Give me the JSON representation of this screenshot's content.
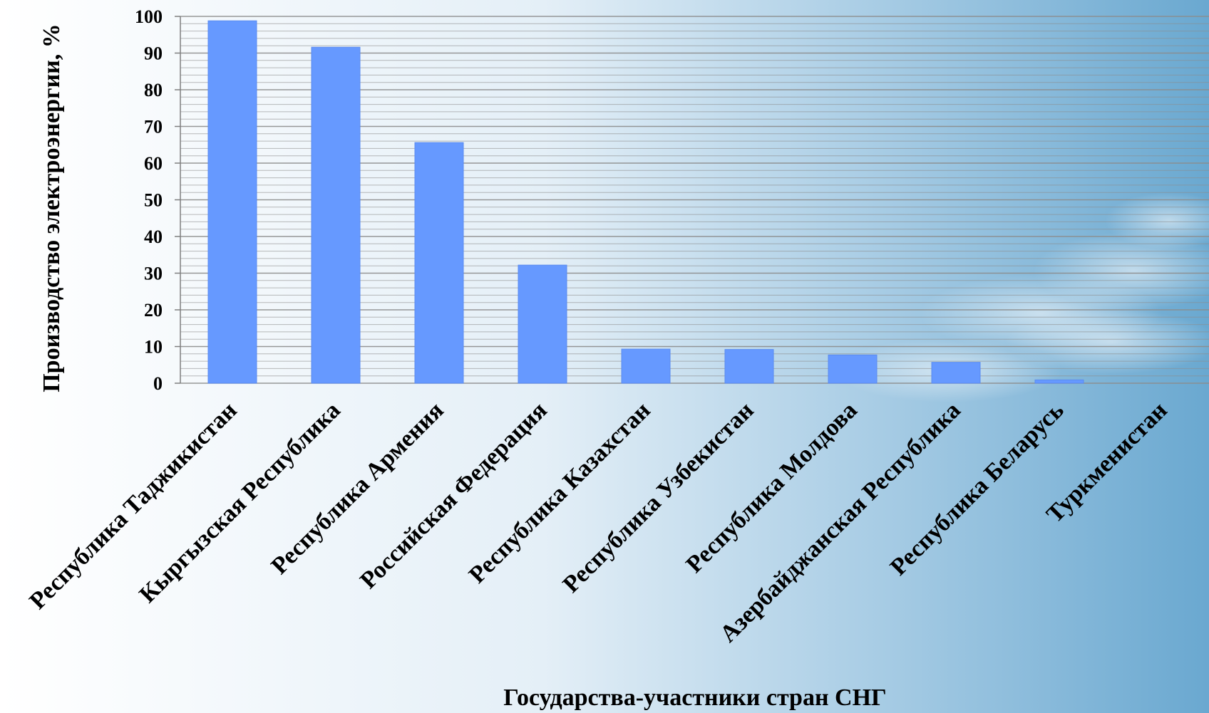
{
  "colors": {
    "bar": "#6699FF",
    "background_left": "#FFFFFF",
    "background_right": "#6AA8D0",
    "gridline": "#8C8C8C"
  },
  "chart_data": {
    "type": "bar",
    "title": "",
    "xlabel": "Государства-участники стран СНГ",
    "ylabel": "Производство электроэнергии, %",
    "ylim": [
      0,
      100
    ],
    "yticks": [
      0,
      10,
      20,
      30,
      40,
      50,
      60,
      70,
      80,
      90,
      100
    ],
    "minor_grid_step": 2,
    "grid": true,
    "legend": "none",
    "categories": [
      "Республика Таджикистан",
      "Кыргызская Республика",
      "Республика Армения",
      "Российская Федерация",
      "Республика Казахстан",
      "Республика Узбекистан",
      "Республика Молдова",
      "Азербайджанская Республика",
      "Республика Беларусь",
      "Туркменистан"
    ],
    "values": [
      98.8,
      91.6,
      65.6,
      32.2,
      9.3,
      9.2,
      7.7,
      5.7,
      0.9,
      0
    ]
  }
}
